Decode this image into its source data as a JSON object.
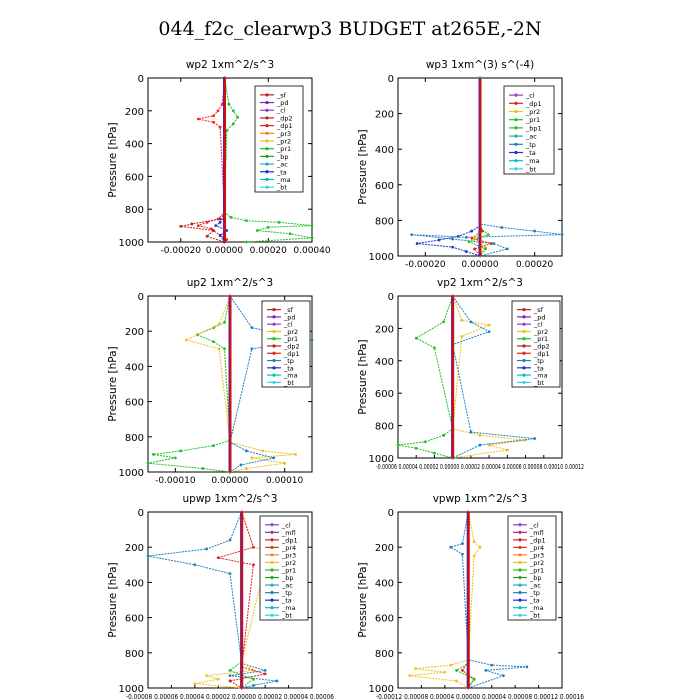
{
  "figure": {
    "title": "044_f2c_clearwp3  BUDGET at265E,-2N"
  },
  "chart_data": [
    {
      "type": "line",
      "title": "wp2   1xm^2/s^3",
      "ylabel": "Pressure  [hPa]",
      "ylim": [
        1000,
        0
      ],
      "yticks": [
        {
          "v": 0,
          "label": "0"
        },
        {
          "v": 200,
          "label": "200"
        },
        {
          "v": 400,
          "label": "400"
        },
        {
          "v": 600,
          "label": "600"
        },
        {
          "v": 800,
          "label": "800"
        },
        {
          "v": 1000,
          "label": "1000"
        }
      ],
      "xlim": [
        -0.00035,
        0.0004
      ],
      "xticks": [
        {
          "v": -0.0002,
          "label": "-0.00020"
        },
        {
          "v": 0,
          "label": "0.00000"
        },
        {
          "v": 0.0002,
          "label": "0.00020"
        },
        {
          "v": 0.0004,
          "label": "0.00040"
        }
      ],
      "legend": [
        "_sf",
        "_pd",
        "_cl",
        "_dp2",
        "_dp1",
        "_pr3",
        "_pr2",
        "_pr1",
        "_bp",
        "_ac",
        "_ta",
        "_ma",
        "_bt"
      ],
      "series": [
        {
          "name": "_cl",
          "color": "#ff2020",
          "x": [
            0,
            -1e-05,
            -3e-05,
            -5e-05,
            -0.00012,
            -5e-05,
            -2e-05,
            0,
            -3e-05,
            -8e-05,
            -0.00012,
            -6e-05,
            -2e-05,
            1e-05,
            0
          ],
          "y": [
            0,
            160,
            200,
            230,
            250,
            270,
            300,
            820,
            860,
            880,
            900,
            920,
            960,
            985,
            1000
          ]
        },
        {
          "name": "_pr1",
          "color": "#20c020",
          "x": [
            0,
            2e-05,
            4e-05,
            6e-05,
            4e-05,
            1e-05,
            0,
            3e-05,
            0.0001,
            0.00025,
            0.0004,
            0.0002,
            0.00015,
            0.0003,
            0.0004,
            0.0001
          ],
          "y": [
            0,
            160,
            200,
            240,
            280,
            320,
            820,
            850,
            870,
            880,
            900,
            910,
            930,
            950,
            975,
            1000
          ]
        },
        {
          "name": "_dp2",
          "color": "#c02020",
          "x": [
            0,
            0,
            0,
            -2e-05,
            -0.00015,
            -0.0002,
            -5e-05,
            -8e-05,
            0
          ],
          "y": [
            0,
            300,
            830,
            860,
            890,
            905,
            930,
            965,
            1000
          ]
        },
        {
          "name": "_bp",
          "color": "#2030d0",
          "x": [
            0,
            0,
            -2e-05,
            -4e-05,
            1e-05,
            -2e-05,
            0
          ],
          "y": [
            0,
            840,
            880,
            900,
            930,
            960,
            1000
          ]
        },
        {
          "name": "_bt",
          "color": "#4060a0",
          "x": [
            0,
            0,
            0
          ],
          "y": [
            0,
            500,
            1000
          ]
        },
        {
          "name": "_pd",
          "color": "#8020c0",
          "x": [
            0,
            0,
            0
          ],
          "y": [
            0,
            500,
            1000
          ]
        }
      ]
    },
    {
      "type": "line",
      "title": "wp3   1xm^(3) s^(-4)",
      "ylabel": "Pressure  [hPa]",
      "ylim": [
        1000,
        0
      ],
      "yticks": [
        {
          "v": 0,
          "label": "0"
        },
        {
          "v": 200,
          "label": "200"
        },
        {
          "v": 400,
          "label": "400"
        },
        {
          "v": 600,
          "label": "600"
        },
        {
          "v": 800,
          "label": "800"
        },
        {
          "v": 1000,
          "label": "1000"
        }
      ],
      "xlim": [
        -0.0003,
        0.0003
      ],
      "xticks": [
        {
          "v": -0.0002,
          "label": "-0.00020"
        },
        {
          "v": 0,
          "label": "0.00000"
        },
        {
          "v": 0.0002,
          "label": "0.00020"
        }
      ],
      "legend": [
        "_cl",
        "_dp1",
        "_pr2",
        "_pr1",
        "_bp1",
        "_ac",
        "_tp",
        "_ta",
        "_ma",
        "_bt"
      ],
      "series": [
        {
          "name": "_ta",
          "color": "#2030d0",
          "x": [
            0,
            0,
            -3e-05,
            -8e-05,
            -0.00015,
            -0.00023,
            -0.0001,
            -5e-05,
            0
          ],
          "y": [
            0,
            830,
            860,
            890,
            910,
            930,
            950,
            975,
            1000
          ]
        },
        {
          "name": "_tp",
          "color": "#2080c0",
          "x": [
            0,
            0,
            8e-05,
            0.0002,
            0.0003,
            -5e-05,
            -0.00025,
            -0.0001,
            5e-05,
            0.0001,
            0
          ],
          "y": [
            0,
            820,
            840,
            860,
            880,
            895,
            880,
            905,
            930,
            960,
            1000
          ]
        },
        {
          "name": "_dp1",
          "color": "#e02020",
          "x": [
            0,
            0,
            1e-05,
            -3e-05,
            4e-05,
            -2e-05,
            0
          ],
          "y": [
            0,
            820,
            860,
            900,
            930,
            960,
            1000
          ]
        },
        {
          "name": "_pr2",
          "color": "#f0c020",
          "x": [
            0,
            0,
            -2e-05,
            2e-05,
            0
          ],
          "y": [
            0,
            850,
            900,
            950,
            1000
          ]
        },
        {
          "name": "_bp1",
          "color": "#20c020",
          "x": [
            0,
            0,
            3e-05,
            -4e-05,
            2e-05,
            0
          ],
          "y": [
            0,
            840,
            880,
            920,
            960,
            1000
          ]
        }
      ]
    },
    {
      "type": "line",
      "title": "up2   1xm^2/s^3",
      "ylabel": "Pressure  [hPa]",
      "ylim": [
        1000,
        0
      ],
      "yticks": [
        {
          "v": 0,
          "label": "0"
        },
        {
          "v": 200,
          "label": "200"
        },
        {
          "v": 400,
          "label": "400"
        },
        {
          "v": 600,
          "label": "600"
        },
        {
          "v": 800,
          "label": "800"
        },
        {
          "v": 1000,
          "label": "1000"
        }
      ],
      "xlim": [
        -0.00015,
        0.00015
      ],
      "xticks": [
        {
          "v": -0.0001,
          "label": "-0.00010"
        },
        {
          "v": 0,
          "label": "0.00000"
        },
        {
          "v": 0.0001,
          "label": "0.00010"
        }
      ],
      "legend": [
        "_sf",
        "_pd",
        "_cl",
        "_pr2",
        "_pr1",
        "_dp2",
        "_dp1",
        "_tp",
        "_ta",
        "_ma",
        "_bt"
      ],
      "series": [
        {
          "name": "_pr1",
          "color": "#20c020",
          "x": [
            0,
            -1e-05,
            -3e-05,
            -6e-05,
            -3e-05,
            -1e-05,
            0,
            -3e-05,
            -9e-05,
            -0.00014,
            -0.0001,
            -0.00015,
            -5e-05,
            0
          ],
          "y": [
            0,
            150,
            180,
            220,
            260,
            300,
            820,
            850,
            880,
            900,
            920,
            950,
            980,
            1000
          ]
        },
        {
          "name": "_pr2",
          "color": "#f0c020",
          "x": [
            0,
            -2e-05,
            -8e-05,
            -2e-05,
            0,
            6e-05,
            0.00012,
            4e-05,
            0.0001,
            3e-05,
            0
          ],
          "y": [
            0,
            160,
            250,
            300,
            830,
            880,
            900,
            920,
            950,
            980,
            1000
          ]
        },
        {
          "name": "_tp",
          "color": "#2080c0",
          "x": [
            0,
            4e-05,
            0.0001,
            0.00015,
            4e-05,
            0,
            3e-05,
            8e-05,
            2e-05,
            0
          ],
          "y": [
            0,
            180,
            220,
            250,
            300,
            830,
            880,
            920,
            960,
            1000
          ]
        },
        {
          "name": "_cl",
          "color": "#ff2020",
          "x": [
            0,
            0,
            0,
            0
          ],
          "y": [
            0,
            300,
            700,
            1000
          ]
        }
      ]
    },
    {
      "type": "line",
      "title": "vp2   1xm^2/s^3",
      "ylabel": "Pressure  [hPa]",
      "ylim": [
        1000,
        0
      ],
      "yticks": [
        {
          "v": 0,
          "label": "0"
        },
        {
          "v": 200,
          "label": "200"
        },
        {
          "v": 400,
          "label": "400"
        },
        {
          "v": 600,
          "label": "600"
        },
        {
          "v": 800,
          "label": "800"
        },
        {
          "v": 1000,
          "label": "1000"
        }
      ],
      "xlim": [
        -6e-05,
        0.00012
      ],
      "xticks": [
        {
          "v": -6e-05,
          "label": "-0.00006"
        },
        {
          "v": -4e-05,
          "label": "0.00004"
        },
        {
          "v": -2e-05,
          "label": "0.00002"
        },
        {
          "v": 0,
          "label": "0.00000"
        },
        {
          "v": 2e-05,
          "label": "0.00002"
        },
        {
          "v": 4e-05,
          "label": "0.00004"
        },
        {
          "v": 6e-05,
          "label": "0.00006"
        },
        {
          "v": 8e-05,
          "label": "0.00008"
        },
        {
          "v": 0.0001,
          "label": "0.00010"
        },
        {
          "v": 0.00012,
          "label": "0.00012"
        }
      ],
      "xtick_labels_joined": "-0.00006 0.00004 0.00002 0.00000 0.00002 0.00004 0.00006 0.00008 0.00010 0.00012",
      "legend": [
        "_sf",
        "_pd",
        "_cl",
        "_pr2",
        "_pr1",
        "_dp2",
        "_dp1",
        "_tp",
        "_ta",
        "_ma",
        "_bt"
      ],
      "series": [
        {
          "name": "_pr1",
          "color": "#20c020",
          "x": [
            0,
            -1e-05,
            -4e-05,
            -2e-05,
            0,
            -1e-05,
            -3e-05,
            -6e-05,
            -4e-05,
            -2e-05,
            0
          ],
          "y": [
            0,
            160,
            260,
            320,
            820,
            860,
            900,
            920,
            940,
            970,
            1000
          ]
        },
        {
          "name": "_pr2",
          "color": "#f0c020",
          "x": [
            0,
            1e-05,
            4e-05,
            1e-05,
            0,
            3e-05,
            8e-05,
            4e-05,
            6e-05,
            0
          ],
          "y": [
            0,
            150,
            180,
            250,
            820,
            860,
            890,
            920,
            950,
            1000
          ]
        },
        {
          "name": "_tp",
          "color": "#2080c0",
          "x": [
            0,
            2e-05,
            4e-05,
            0,
            2e-05,
            9e-05,
            3e-05,
            0
          ],
          "y": [
            0,
            160,
            220,
            300,
            840,
            880,
            920,
            1000
          ]
        },
        {
          "name": "_cl",
          "color": "#ff2020",
          "x": [
            0,
            0,
            0
          ],
          "y": [
            0,
            500,
            1000
          ]
        }
      ]
    },
    {
      "type": "line",
      "title": "upwp   1xm^2/s^3",
      "ylabel": "Pressure  [hPa]",
      "ylim": [
        1000,
        0
      ],
      "yticks": [
        {
          "v": 0,
          "label": "0"
        },
        {
          "v": 200,
          "label": "200"
        },
        {
          "v": 400,
          "label": "400"
        },
        {
          "v": 600,
          "label": "600"
        },
        {
          "v": 800,
          "label": "800"
        },
        {
          "v": 1000,
          "label": "1000"
        }
      ],
      "xlim": [
        -8e-05,
        6e-05
      ],
      "xtick_labels_joined": "-0.00008 0.00006 0.00004 0.00002 0.00000 0.00002 0.00004 0.00006",
      "legend": [
        "_cl",
        "_mfl",
        "_dp1",
        "_pr4",
        "_pr3",
        "_pr2",
        "_pr1",
        "_bp",
        "_ac",
        "_tp",
        "_ta",
        "_ma",
        "_bt"
      ],
      "series": [
        {
          "name": "_tp",
          "color": "#2080c0",
          "x": [
            0,
            -1e-05,
            -3e-05,
            -8e-05,
            -4e-05,
            -1e-05,
            0,
            2e-05,
            -1e-05,
            3e-05,
            1e-05,
            0
          ],
          "y": [
            0,
            160,
            210,
            250,
            300,
            350,
            860,
            900,
            930,
            960,
            985,
            1000
          ]
        },
        {
          "name": "_pr2",
          "color": "#f0c020",
          "x": [
            0,
            1e-05,
            4e-05,
            2e-05,
            0,
            1e-05,
            -3e-05,
            -2e-05,
            -4e-05,
            0
          ],
          "y": [
            0,
            200,
            250,
            300,
            850,
            900,
            930,
            950,
            975,
            1000
          ]
        },
        {
          "name": "_dp1",
          "color": "#e02020",
          "x": [
            0,
            1e-05,
            -2e-05,
            1e-05,
            0,
            2e-05,
            -1e-05,
            0
          ],
          "y": [
            0,
            200,
            260,
            300,
            880,
            920,
            960,
            1000
          ]
        },
        {
          "name": "_bp",
          "color": "#20c020",
          "x": [
            0,
            0,
            -1e-05,
            1e-05,
            0
          ],
          "y": [
            0,
            850,
            900,
            950,
            1000
          ]
        },
        {
          "name": "_cl",
          "color": "#ff2020",
          "x": [
            0,
            0,
            0
          ],
          "y": [
            0,
            500,
            1000
          ]
        }
      ]
    },
    {
      "type": "line",
      "title": "vpwp   1xm^2/s^3",
      "ylabel": "Pressure  [hPa]",
      "ylim": [
        1000,
        0
      ],
      "yticks": [
        {
          "v": 0,
          "label": "0"
        },
        {
          "v": 200,
          "label": "200"
        },
        {
          "v": 400,
          "label": "400"
        },
        {
          "v": 600,
          "label": "600"
        },
        {
          "v": 800,
          "label": "800"
        },
        {
          "v": 1000,
          "label": "1000"
        }
      ],
      "xlim": [
        -0.00012,
        0.00016
      ],
      "xtick_labels_joined": "-0.00012 0.00008 0.00004 0.00000 0.00004 0.00008 0.00012 0.00016",
      "legend": [
        "_cl",
        "_mfl",
        "_dp1",
        "_pr4",
        "_pr3",
        "_pr2",
        "_pr1",
        "_bp",
        "_ac",
        "_tp",
        "_ta",
        "_ma",
        "_bt"
      ],
      "series": [
        {
          "name": "_pr2",
          "color": "#f0c020",
          "x": [
            0,
            1e-05,
            2e-05,
            1e-05,
            0,
            -3e-05,
            -9e-05,
            -4e-05,
            -0.0001,
            -2e-05,
            0
          ],
          "y": [
            0,
            170,
            200,
            250,
            840,
            870,
            890,
            910,
            930,
            960,
            1000
          ]
        },
        {
          "name": "_tp",
          "color": "#2080c0",
          "x": [
            0,
            -1e-05,
            -3e-05,
            -1e-05,
            0,
            4e-05,
            0.0001,
            3e-05,
            6e-05,
            0
          ],
          "y": [
            0,
            180,
            200,
            240,
            840,
            870,
            880,
            900,
            930,
            1000
          ]
        },
        {
          "name": "_dp1",
          "color": "#e02020",
          "x": [
            0,
            0,
            -1e-05,
            1e-05,
            0
          ],
          "y": [
            0,
            850,
            900,
            950,
            1000
          ]
        },
        {
          "name": "_bp",
          "color": "#20c020",
          "x": [
            0,
            0,
            -2e-05,
            1e-05,
            0
          ],
          "y": [
            0,
            860,
            900,
            950,
            1000
          ]
        },
        {
          "name": "_cl",
          "color": "#ff2020",
          "x": [
            0,
            0,
            0
          ],
          "y": [
            0,
            500,
            1000
          ]
        }
      ]
    }
  ]
}
